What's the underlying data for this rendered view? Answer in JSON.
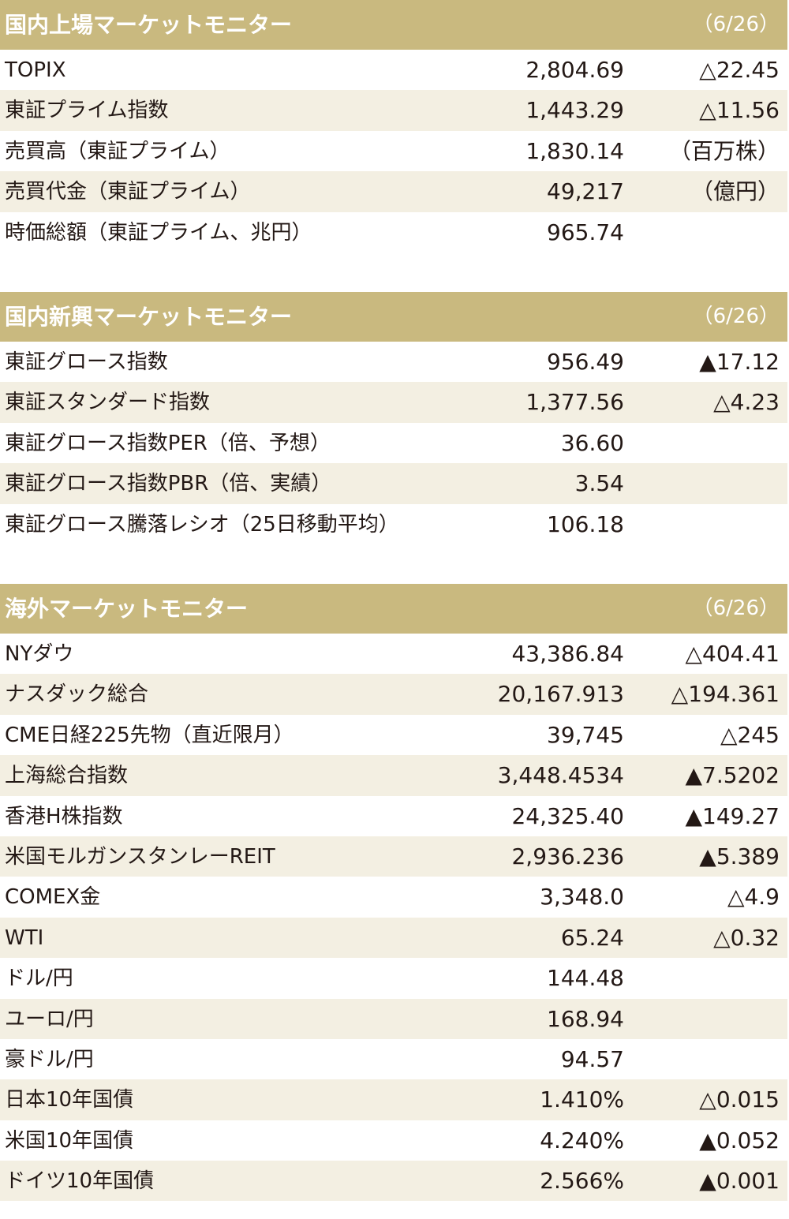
{
  "colors": {
    "header_bg": "#c9b97f",
    "header_text": "#ffffff",
    "row_alt_bg": "#f3efe2",
    "text": "#231815"
  },
  "sections": [
    {
      "title": "国内上場マーケットモニター",
      "date": "（6/26）",
      "rows": [
        {
          "label": "TOPIX",
          "value": "2,804.69",
          "change": "△22.45"
        },
        {
          "label": "東証プライム指数",
          "value": "1,443.29",
          "change": "△11.56"
        },
        {
          "label": "売買高（東証プライム）",
          "value": "1,830.14",
          "change": "（百万株）"
        },
        {
          "label": "売買代金（東証プライム）",
          "value": "49,217",
          "change": "（億円）"
        },
        {
          "label": "時価総額（東証プライム、兆円）",
          "value": "965.74",
          "change": ""
        }
      ]
    },
    {
      "title": "国内新興マーケットモニター",
      "date": "（6/26）",
      "rows": [
        {
          "label": "東証グロース指数",
          "value": "956.49",
          "change": "▲17.12"
        },
        {
          "label": "東証スタンダード指数",
          "value": "1,377.56",
          "change": "△4.23"
        },
        {
          "label": "東証グロース指数PER（倍、予想）",
          "value": "36.60",
          "change": ""
        },
        {
          "label": "東証グロース指数PBR（倍、実績）",
          "value": "3.54",
          "change": ""
        },
        {
          "label": "東証グロース騰落レシオ（25日移動平均）",
          "value": "106.18",
          "change": ""
        }
      ]
    },
    {
      "title": "海外マーケットモニター",
      "date": "（6/26）",
      "rows": [
        {
          "label": "NYダウ",
          "value": "43,386.84",
          "change": "△404.41"
        },
        {
          "label": "ナスダック総合",
          "value": "20,167.913",
          "change": "△194.361"
        },
        {
          "label": "CME日経225先物（直近限月）",
          "value": "39,745",
          "change": "△245"
        },
        {
          "label": "上海総合指数",
          "value": "3,448.4534",
          "change": "▲7.5202"
        },
        {
          "label": "香港H株指数",
          "value": "24,325.40",
          "change": "▲149.27"
        },
        {
          "label": "米国モルガンスタンレーREIT",
          "value": "2,936.236",
          "change": "▲5.389"
        },
        {
          "label": "COMEX金",
          "value": "3,348.0",
          "change": "△4.9"
        },
        {
          "label": "WTI",
          "value": "65.24",
          "change": "△0.32"
        },
        {
          "label": "ドル/円",
          "value": "144.48",
          "change": ""
        },
        {
          "label": "ユーロ/円",
          "value": "168.94",
          "change": ""
        },
        {
          "label": "豪ドル/円",
          "value": "94.57",
          "change": ""
        },
        {
          "label": "日本10年国債",
          "value": "1.410%",
          "change": "△0.015"
        },
        {
          "label": "米国10年国債",
          "value": "4.240%",
          "change": "▲0.052"
        },
        {
          "label": "ドイツ10年国債",
          "value": "2.566%",
          "change": "▲0.001"
        }
      ]
    }
  ]
}
